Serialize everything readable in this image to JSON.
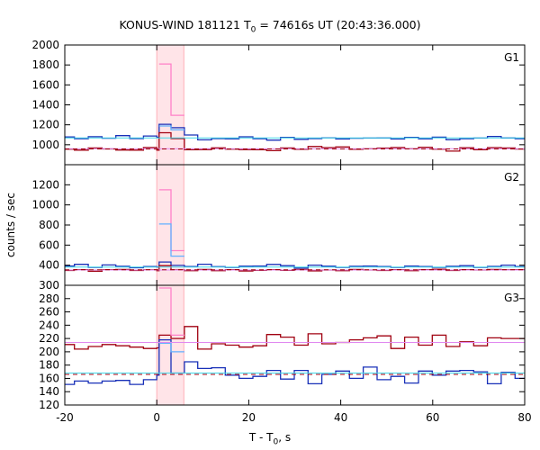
{
  "header": {
    "title_main": "KONUS-WIND 181121 T",
    "title_sub": "0",
    "title_tail": " = 74616s UT (20:43:36.000)"
  },
  "axes": {
    "xlabel_main": "T - T",
    "xlabel_sub": "0",
    "xlabel_tail": ", s",
    "ylabel": "counts / sec"
  },
  "colors": {
    "dark_red": "#a00010",
    "dark_blue": "#1830b8",
    "pink": "#ff80c8",
    "light_blue": "#60b0ff",
    "cyan": "#40d8e8",
    "violet": "#e088f0",
    "shade": "#ffe4e8",
    "shade_edge": "#ffb0b8"
  },
  "chart_data": {
    "type": "line",
    "xlim": [
      -20,
      80
    ],
    "xticks": [
      -20,
      0,
      20,
      40,
      60,
      80
    ],
    "highlight_interval": [
      0,
      5.888
    ],
    "panels": [
      {
        "name": "G1",
        "ylim": [
          800,
          2000
        ],
        "yticks": [
          800,
          1000,
          1200,
          1400,
          1600,
          1800,
          2000
        ],
        "series": [
          {
            "color": "dark_blue",
            "kind": "step",
            "x": [
              -20,
              -17.9,
              -14.9,
              -11.9,
              -8.9,
              -5.9,
              -2.9,
              0,
              0.5,
              3.1,
              6,
              8.9,
              11.9,
              14.9,
              17.9,
              20.9,
              23.9,
              26.9,
              29.9,
              32.9,
              35.9,
              38.9,
              41.9,
              44.9,
              47.9,
              50.9,
              53.9,
              56.9,
              59.9,
              62.9,
              65.9,
              68.9,
              71.9,
              74.9,
              77.9,
              80
            ],
            "y": [
              1078,
              1061,
              1081,
              1065,
              1091,
              1062,
              1088,
              1075,
              1205,
              1171,
              1098,
              1049,
              1062,
              1060,
              1080,
              1061,
              1046,
              1073,
              1054,
              1062,
              1070,
              1059,
              1065,
              1067,
              1068,
              1058,
              1074,
              1060,
              1076,
              1051,
              1061,
              1067,
              1083,
              1068,
              1061,
              1061
            ]
          },
          {
            "color": "dark_red",
            "kind": "step",
            "x": [
              -20,
              -17.9,
              -14.9,
              -11.9,
              -8.9,
              -5.9,
              -2.9,
              0,
              0.5,
              3.1,
              6,
              8.9,
              11.9,
              14.9,
              17.9,
              20.9,
              23.9,
              26.9,
              29.9,
              32.9,
              35.9,
              38.9,
              41.9,
              44.9,
              47.9,
              50.9,
              53.9,
              56.9,
              59.9,
              62.9,
              65.9,
              68.9,
              71.9,
              74.9,
              77.9,
              80
            ],
            "y": [
              956,
              946,
              968,
              958,
              947,
              946,
              972,
              946,
              1120,
              1062,
              950,
              952,
              969,
              956,
              952,
              950,
              941,
              968,
              954,
              982,
              971,
              978,
              954,
              960,
              967,
              972,
              960,
              975,
              956,
              936,
              970,
              950,
              971,
              968,
              957,
              957
            ]
          },
          {
            "color": "pink",
            "kind": "step",
            "x": [
              0.5,
              3.1,
              6
            ],
            "y": [
              1810,
              1295,
              1295
            ]
          },
          {
            "color": "light_blue",
            "kind": "step",
            "x": [
              0.5,
              3.1,
              6
            ],
            "y": [
              1188,
              1150,
              1150
            ]
          },
          {
            "color": "cyan",
            "kind": "level",
            "x": [
              -20,
              80
            ],
            "y": [
              1069,
              1069
            ]
          },
          {
            "color": "violet",
            "kind": "level",
            "x": [
              -20,
              80
            ],
            "y": [
              960,
              960
            ]
          },
          {
            "color": "dark_red",
            "kind": "dashed",
            "x": [
              -20,
              80
            ],
            "y": [
              958,
              958
            ]
          }
        ]
      },
      {
        "name": "G2",
        "ylim": [
          200,
          1400
        ],
        "yticks": [
          200,
          400,
          600,
          800,
          1000,
          1200
        ],
        "series": [
          {
            "color": "dark_blue",
            "kind": "step",
            "x": [
              -20,
              -17.9,
              -14.9,
              -11.9,
              -8.9,
              -5.9,
              -2.9,
              0,
              0.5,
              3.1,
              6,
              8.9,
              11.9,
              14.9,
              17.9,
              20.9,
              23.9,
              26.9,
              29.9,
              32.9,
              35.9,
              38.9,
              41.9,
              44.9,
              47.9,
              50.9,
              53.9,
              56.9,
              59.9,
              62.9,
              65.9,
              68.9,
              71.9,
              74.9,
              77.9,
              80
            ],
            "y": [
              392,
              409,
              378,
              402,
              389,
              375,
              386,
              382,
              432,
              398,
              387,
              410,
              385,
              378,
              390,
              392,
              408,
              395,
              372,
              401,
              390,
              378,
              389,
              392,
              386,
              378,
              392,
              386,
              378,
              389,
              395,
              378,
              388,
              401,
              386,
              386
            ]
          },
          {
            "color": "dark_red",
            "kind": "step",
            "x": [
              -20,
              -17.9,
              -14.9,
              -11.9,
              -8.9,
              -5.9,
              -2.9,
              0,
              0.5,
              3.1,
              6,
              8.9,
              11.9,
              14.9,
              17.9,
              20.9,
              23.9,
              26.9,
              29.9,
              32.9,
              35.9,
              38.9,
              41.9,
              44.9,
              47.9,
              50.9,
              53.9,
              56.9,
              59.9,
              62.9,
              65.9,
              68.9,
              71.9,
              74.9,
              77.9,
              80
            ],
            "y": [
              348,
              356,
              340,
              355,
              358,
              348,
              354,
              346,
              395,
              354,
              346,
              358,
              346,
              355,
              342,
              350,
              356,
              349,
              358,
              343,
              352,
              346,
              358,
              352,
              348,
              356,
              346,
              355,
              360,
              348,
              355,
              352,
              358,
              354,
              355,
              355
            ]
          },
          {
            "color": "pink",
            "kind": "step",
            "x": [
              0.5,
              3.1,
              6
            ],
            "y": [
              1150,
              545,
              545
            ]
          },
          {
            "color": "light_blue",
            "kind": "step",
            "x": [
              0.5,
              3.1,
              6
            ],
            "y": [
              810,
              490,
              490
            ]
          },
          {
            "color": "cyan",
            "kind": "level",
            "x": [
              -20,
              80
            ],
            "y": [
              382,
              382
            ]
          },
          {
            "color": "violet",
            "kind": "level",
            "x": [
              -20,
              80
            ],
            "y": [
              352,
              352
            ]
          },
          {
            "color": "dark_red",
            "kind": "dashed",
            "x": [
              -20,
              80
            ],
            "y": [
              355,
              355
            ]
          }
        ]
      },
      {
        "name": "G3",
        "ylim": [
          120,
          300
        ],
        "yticks": [
          120,
          140,
          160,
          180,
          200,
          220,
          240,
          260,
          280,
          300
        ],
        "series": [
          {
            "color": "dark_red",
            "kind": "step",
            "x": [
              -20,
              -17.9,
              -14.9,
              -11.9,
              -8.9,
              -5.9,
              -2.9,
              0,
              0.5,
              3.1,
              6,
              8.9,
              11.9,
              14.9,
              17.9,
              20.9,
              23.9,
              26.9,
              29.9,
              32.9,
              35.9,
              38.9,
              41.9,
              44.9,
              47.9,
              50.9,
              53.9,
              56.9,
              59.9,
              62.9,
              65.9,
              68.9,
              71.9,
              74.9,
              77.9,
              80
            ],
            "y": [
              211,
              204,
              208,
              211,
              209,
              207,
              205,
              206,
              225,
              220,
              238,
              204,
              212,
              210,
              207,
              209,
              226,
              222,
              210,
              227,
              212,
              214,
              218,
              221,
              224,
              205,
              222,
              210,
              225,
              208,
              215,
              209,
              221,
              220,
              220,
              220
            ]
          },
          {
            "color": "dark_blue",
            "kind": "step",
            "x": [
              -20,
              -17.9,
              -14.9,
              -11.9,
              -8.9,
              -5.9,
              -2.9,
              0,
              0.5,
              3.1,
              6,
              8.9,
              11.9,
              14.9,
              17.9,
              20.9,
              23.9,
              26.9,
              29.9,
              32.9,
              35.9,
              38.9,
              41.9,
              44.9,
              47.9,
              50.9,
              53.9,
              56.9,
              59.9,
              62.9,
              65.9,
              68.9,
              71.9,
              74.9,
              77.9,
              80
            ],
            "y": [
              151,
              156,
              153,
              156,
              157,
              151,
              158,
              165,
              218,
              168,
              185,
              175,
              176,
              165,
              160,
              163,
              172,
              159,
              172,
              152,
              166,
              171,
              160,
              177,
              158,
              163,
              153,
              171,
              165,
              171,
              172,
              170,
              152,
              169,
              160,
              160
            ]
          },
          {
            "color": "pink",
            "kind": "step",
            "x": [
              0.5,
              3.1,
              6
            ],
            "y": [
              296,
              225,
              225
            ]
          },
          {
            "color": "light_blue",
            "kind": "step",
            "x": [
              0.5,
              3.1,
              6
            ],
            "y": [
              213,
              200,
              200
            ]
          },
          {
            "color": "cyan",
            "kind": "level",
            "x": [
              -20,
              80
            ],
            "y": [
              168,
              168
            ]
          },
          {
            "color": "violet",
            "kind": "level",
            "x": [
              -20,
              80
            ],
            "y": [
              214,
              214
            ]
          },
          {
            "color": "dark_red",
            "kind": "dashed",
            "x": [
              -20,
              80
            ],
            "y": [
              166,
              166
            ]
          }
        ]
      }
    ]
  }
}
